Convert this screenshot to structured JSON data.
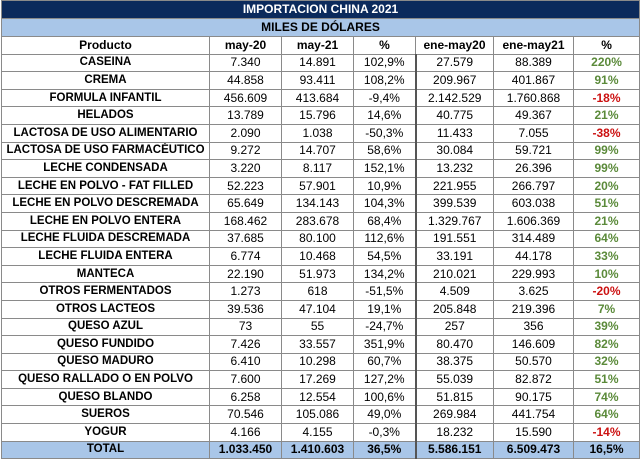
{
  "title": "IMPORTACION CHINA 2021",
  "subtitle": "MILES DE DÓLARES",
  "headers": [
    "Producto",
    "may-20",
    "may-21",
    "%",
    "ene-may20",
    "ene-may21",
    "%"
  ],
  "rows": [
    {
      "producto": "CASEINA",
      "may20": "7.340",
      "may21": "14.891",
      "pct1": "102,9%",
      "ene20": "27.579",
      "ene21": "88.389",
      "pct2": "220%",
      "sign": "pos"
    },
    {
      "producto": "CREMA",
      "may20": "44.858",
      "may21": "93.411",
      "pct1": "108,2%",
      "ene20": "209.967",
      "ene21": "401.867",
      "pct2": "91%",
      "sign": "pos"
    },
    {
      "producto": "FORMULA INFANTIL",
      "may20": "456.609",
      "may21": "413.684",
      "pct1": "-9,4%",
      "ene20": "2.142.529",
      "ene21": "1.760.868",
      "pct2": "-18%",
      "sign": "neg"
    },
    {
      "producto": "HELADOS",
      "may20": "13.789",
      "may21": "15.796",
      "pct1": "14,6%",
      "ene20": "40.775",
      "ene21": "49.367",
      "pct2": "21%",
      "sign": "pos"
    },
    {
      "producto": "LACTOSA DE USO ALIMENTARIO",
      "may20": "2.090",
      "may21": "1.038",
      "pct1": "-50,3%",
      "ene20": "11.433",
      "ene21": "7.055",
      "pct2": "-38%",
      "sign": "neg"
    },
    {
      "producto": "LACTOSA DE USO FARMACÉUTICO",
      "may20": "9.272",
      "may21": "14.707",
      "pct1": "58,6%",
      "ene20": "30.084",
      "ene21": "59.721",
      "pct2": "99%",
      "sign": "pos"
    },
    {
      "producto": "LECHE CONDENSADA",
      "may20": "3.220",
      "may21": "8.117",
      "pct1": "152,1%",
      "ene20": "13.232",
      "ene21": "26.396",
      "pct2": "99%",
      "sign": "pos"
    },
    {
      "producto": "LECHE EN POLVO - FAT FILLED",
      "may20": "52.223",
      "may21": "57.901",
      "pct1": "10,9%",
      "ene20": "221.955",
      "ene21": "266.797",
      "pct2": "20%",
      "sign": "pos"
    },
    {
      "producto": "LECHE EN POLVO DESCREMADA",
      "may20": "65.649",
      "may21": "134.143",
      "pct1": "104,3%",
      "ene20": "399.539",
      "ene21": "603.038",
      "pct2": "51%",
      "sign": "pos"
    },
    {
      "producto": "LECHE EN POLVO ENTERA",
      "may20": "168.462",
      "may21": "283.678",
      "pct1": "68,4%",
      "ene20": "1.329.767",
      "ene21": "1.606.369",
      "pct2": "21%",
      "sign": "pos"
    },
    {
      "producto": "LECHE FLUIDA DESCREMADA",
      "may20": "37.685",
      "may21": "80.100",
      "pct1": "112,6%",
      "ene20": "191.551",
      "ene21": "314.489",
      "pct2": "64%",
      "sign": "pos"
    },
    {
      "producto": "LECHE FLUIDA ENTERA",
      "may20": "6.774",
      "may21": "10.468",
      "pct1": "54,5%",
      "ene20": "33.191",
      "ene21": "44.178",
      "pct2": "33%",
      "sign": "pos"
    },
    {
      "producto": "MANTECA",
      "may20": "22.190",
      "may21": "51.973",
      "pct1": "134,2%",
      "ene20": "210.021",
      "ene21": "229.993",
      "pct2": "10%",
      "sign": "pos"
    },
    {
      "producto": "OTROS FERMENTADOS",
      "may20": "1.273",
      "may21": "618",
      "pct1": "-51,5%",
      "ene20": "4.509",
      "ene21": "3.625",
      "pct2": "-20%",
      "sign": "neg"
    },
    {
      "producto": "OTROS LACTEOS",
      "may20": "39.536",
      "may21": "47.104",
      "pct1": "19,1%",
      "ene20": "205.848",
      "ene21": "219.396",
      "pct2": "7%",
      "sign": "pos"
    },
    {
      "producto": "QUESO AZUL",
      "may20": "73",
      "may21": "55",
      "pct1": "-24,7%",
      "ene20": "257",
      "ene21": "356",
      "pct2": "39%",
      "sign": "pos"
    },
    {
      "producto": "QUESO FUNDIDO",
      "may20": "7.426",
      "may21": "33.557",
      "pct1": "351,9%",
      "ene20": "80.470",
      "ene21": "146.609",
      "pct2": "82%",
      "sign": "pos"
    },
    {
      "producto": "QUESO MADURO",
      "may20": "6.410",
      "may21": "10.298",
      "pct1": "60,7%",
      "ene20": "38.375",
      "ene21": "50.570",
      "pct2": "32%",
      "sign": "pos"
    },
    {
      "producto": "QUESO RALLADO O EN POLVO",
      "may20": "7.600",
      "may21": "17.269",
      "pct1": "127,2%",
      "ene20": "55.039",
      "ene21": "82.872",
      "pct2": "51%",
      "sign": "pos"
    },
    {
      "producto": "QUESO BLANDO",
      "may20": "6.258",
      "may21": "12.554",
      "pct1": "100,6%",
      "ene20": "51.815",
      "ene21": "90.175",
      "pct2": "74%",
      "sign": "pos"
    },
    {
      "producto": "SUEROS",
      "may20": "70.546",
      "may21": "105.086",
      "pct1": "49,0%",
      "ene20": "269.984",
      "ene21": "441.754",
      "pct2": "64%",
      "sign": "pos"
    },
    {
      "producto": "YOGUR",
      "may20": "4.166",
      "may21": "4.155",
      "pct1": "-0,3%",
      "ene20": "18.232",
      "ene21": "15.590",
      "pct2": "-14%",
      "sign": "neg"
    }
  ],
  "total": {
    "producto": "TOTAL",
    "may20": "1.033.450",
    "may21": "1.410.603",
    "pct1": "36,5%",
    "ene20": "5.586.151",
    "ene21": "6.509.473",
    "pct2": "16,5%"
  }
}
